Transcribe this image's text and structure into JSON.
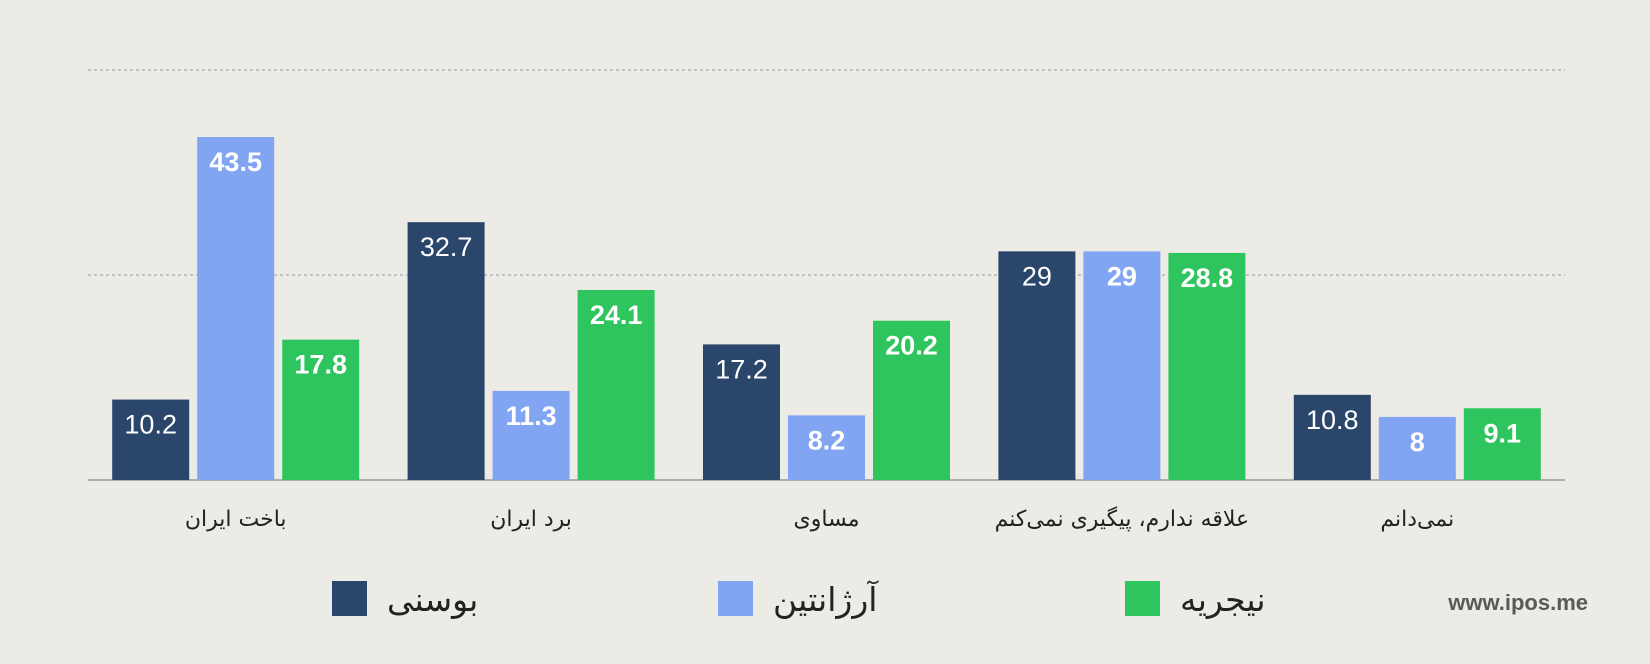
{
  "chart_data": {
    "type": "bar",
    "categories": [
      "باخت ایران",
      "برد ایران",
      "مساوی",
      "علاقه ندارم، پیگیری نمی‌کنم",
      "نمی‌دانم"
    ],
    "series": [
      {
        "name": "بوسنی",
        "values": [
          10.2,
          32.7,
          17.2,
          29,
          10.8
        ],
        "color": "#2b466b"
      },
      {
        "name": "آرژانتین",
        "values": [
          43.5,
          11.3,
          8.2,
          29,
          8
        ],
        "color": "#82a5f3"
      },
      {
        "name": "نیجریه",
        "values": [
          17.8,
          24.1,
          20.2,
          28.8,
          9.1
        ],
        "color": "#2ec45e"
      }
    ],
    "ylim": [
      0,
      52
    ],
    "gridlines": [
      26,
      52
    ],
    "grid": true,
    "legend_position": "bottom"
  },
  "watermark": "www.ipos.me"
}
